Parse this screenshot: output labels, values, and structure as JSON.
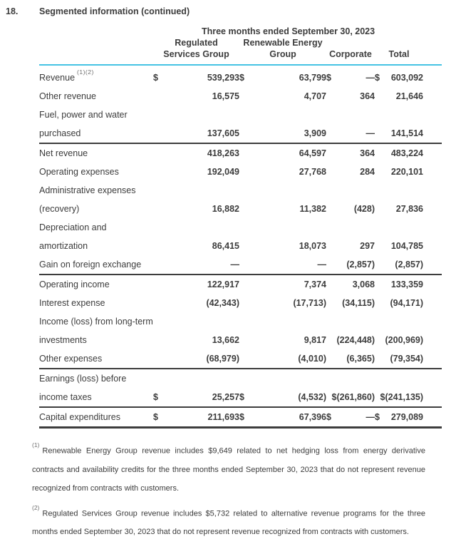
{
  "page": {
    "section_number": "18.",
    "title": "Segmented information (continued)"
  },
  "table": {
    "period_header": "Three months ended September 30, 2023",
    "column_headers": {
      "col1_line1": "Regulated",
      "col1_line2": "Services Group",
      "col2_line1": "Renewable Energy",
      "col2_line2": "Group",
      "col3": "Corporate",
      "col4": "Total"
    },
    "rows": [
      {
        "lines": [
          "Revenue"
        ],
        "sup": "(1)(2)",
        "rule_top": false,
        "cells": [
          {
            "cur": "$",
            "val": "539,293"
          },
          {
            "cur": "$",
            "val": "63,799"
          },
          {
            "cur": "$",
            "val": "—"
          },
          {
            "cur": "$",
            "val": "603,092"
          }
        ]
      },
      {
        "lines": [
          "Other revenue"
        ],
        "rule_top": false,
        "cells": [
          {
            "cur": "",
            "val": "16,575"
          },
          {
            "cur": "",
            "val": "4,707"
          },
          {
            "cur": "",
            "val": "364"
          },
          {
            "cur": "",
            "val": "21,646"
          }
        ]
      },
      {
        "lines": [
          "Fuel, power and water",
          "purchased"
        ],
        "rule_top": false,
        "cells": [
          {
            "cur": "",
            "val": "137,605"
          },
          {
            "cur": "",
            "val": "3,909"
          },
          {
            "cur": "",
            "val": "—"
          },
          {
            "cur": "",
            "val": "141,514"
          }
        ]
      },
      {
        "lines": [
          "Net revenue"
        ],
        "rule_top": true,
        "cells": [
          {
            "cur": "",
            "val": "418,263"
          },
          {
            "cur": "",
            "val": "64,597"
          },
          {
            "cur": "",
            "val": "364"
          },
          {
            "cur": "",
            "val": "483,224"
          }
        ]
      },
      {
        "lines": [
          "Operating expenses"
        ],
        "rule_top": false,
        "cells": [
          {
            "cur": "",
            "val": "192,049"
          },
          {
            "cur": "",
            "val": "27,768"
          },
          {
            "cur": "",
            "val": "284"
          },
          {
            "cur": "",
            "val": "220,101"
          }
        ]
      },
      {
        "lines": [
          "Administrative expenses",
          "(recovery)"
        ],
        "rule_top": false,
        "cells": [
          {
            "cur": "",
            "val": "16,882"
          },
          {
            "cur": "",
            "val": "11,382"
          },
          {
            "cur": "",
            "val": "(428)"
          },
          {
            "cur": "",
            "val": "27,836"
          }
        ]
      },
      {
        "lines": [
          "Depreciation and",
          "amortization"
        ],
        "rule_top": false,
        "cells": [
          {
            "cur": "",
            "val": "86,415"
          },
          {
            "cur": "",
            "val": "18,073"
          },
          {
            "cur": "",
            "val": "297"
          },
          {
            "cur": "",
            "val": "104,785"
          }
        ]
      },
      {
        "lines": [
          "Gain on foreign exchange"
        ],
        "rule_top": false,
        "cells": [
          {
            "cur": "",
            "val": "—"
          },
          {
            "cur": "",
            "val": "—"
          },
          {
            "cur": "",
            "val": "(2,857)"
          },
          {
            "cur": "",
            "val": "(2,857)"
          }
        ]
      },
      {
        "lines": [
          "Operating income"
        ],
        "rule_top": true,
        "cells": [
          {
            "cur": "",
            "val": "122,917"
          },
          {
            "cur": "",
            "val": "7,374"
          },
          {
            "cur": "",
            "val": "3,068"
          },
          {
            "cur": "",
            "val": "133,359"
          }
        ]
      },
      {
        "lines": [
          "Interest expense"
        ],
        "rule_top": false,
        "cells": [
          {
            "cur": "",
            "val": "(42,343)"
          },
          {
            "cur": "",
            "val": "(17,713)"
          },
          {
            "cur": "",
            "val": "(34,115)"
          },
          {
            "cur": "",
            "val": "(94,171)"
          }
        ]
      },
      {
        "lines": [
          "Income (loss) from long-term",
          "investments"
        ],
        "rule_top": false,
        "cells": [
          {
            "cur": "",
            "val": "13,662"
          },
          {
            "cur": "",
            "val": "9,817"
          },
          {
            "cur": "",
            "val": "(224,448)"
          },
          {
            "cur": "",
            "val": "(200,969)"
          }
        ]
      },
      {
        "lines": [
          "Other expenses"
        ],
        "rule_top": false,
        "cells": [
          {
            "cur": "",
            "val": "(68,979)"
          },
          {
            "cur": "",
            "val": "(4,010)"
          },
          {
            "cur": "",
            "val": "(6,365)"
          },
          {
            "cur": "",
            "val": "(79,354)"
          }
        ]
      },
      {
        "lines": [
          "Earnings (loss) before",
          "income taxes"
        ],
        "rule_top": true,
        "cells": [
          {
            "cur": "$",
            "val": "25,257"
          },
          {
            "cur": "$",
            "val": "(4,532)"
          },
          {
            "cur": "",
            "val": "$(261,860)"
          },
          {
            "cur": "",
            "val": "$(241,135)"
          }
        ]
      },
      {
        "lines": [
          "Capital expenditures"
        ],
        "rule_top": true,
        "cells": [
          {
            "cur": "$",
            "val": "211,693"
          },
          {
            "cur": "$",
            "val": "67,396"
          },
          {
            "cur": "$",
            "val": "—"
          },
          {
            "cur": "$",
            "val": "279,089"
          }
        ]
      }
    ]
  },
  "footnotes": [
    {
      "marker": "(1)",
      "text": "Renewable Energy Group revenue includes $9,649 related to net hedging loss from energy derivative contracts and availability credits for the three months ended September 30, 2023 that do not represent revenue recognized from contracts with customers."
    },
    {
      "marker": "(2)",
      "text": "Regulated Services Group revenue includes $5,732 related to alternative revenue programs for the three months ended September 30, 2023 that do not represent revenue recognized from contracts with customers."
    }
  ],
  "colors": {
    "accent_rule": "#45c3e4",
    "dark_rule": "#3d3d3d",
    "text": "#3c3c3c",
    "footnote_marker": "#6e6e6e"
  }
}
